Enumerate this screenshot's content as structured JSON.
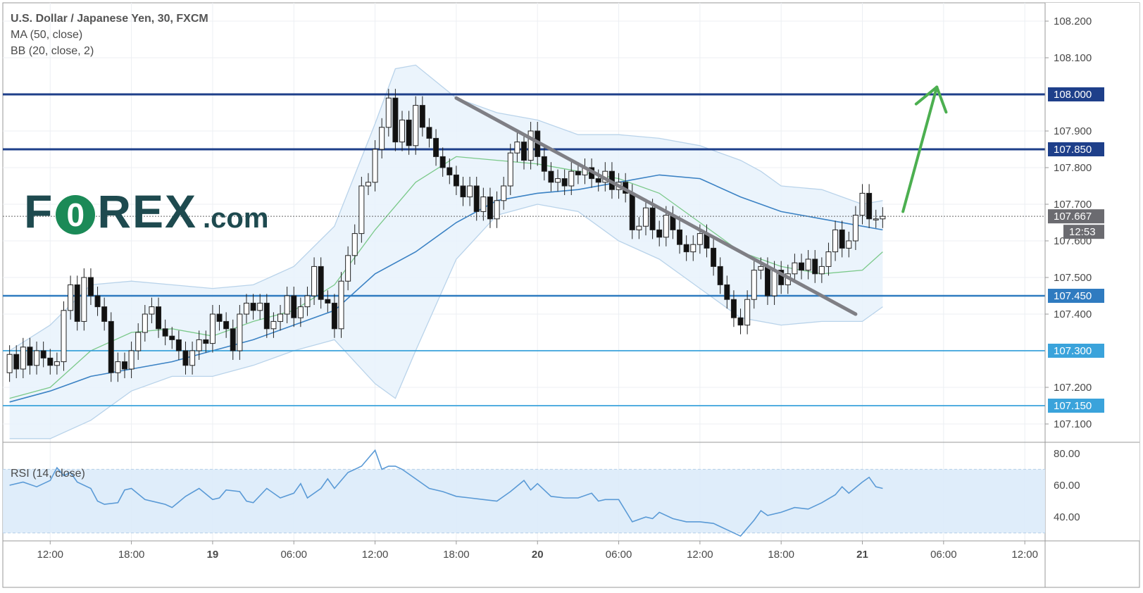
{
  "legend": {
    "title": "U.S. Dollar / Japanese Yen, 30, FXCM",
    "ma": "MA (50, close)",
    "bb": "BB (20, close, 2)",
    "rsi": "RSI (14, close)"
  },
  "logo": {
    "text_left": "F",
    "text_o": "0",
    "text_right": "REX",
    "text_domain": ".com"
  },
  "colors": {
    "level_dark": "#1e3f8a",
    "level_light": "#3aa3db",
    "candle_up": "#ffffff",
    "candle_down": "#111111",
    "ma": "#3b82c4",
    "bb_mid": "#7bc98a",
    "bb_fill": "#e8f2fb",
    "trend": "#7f7f85",
    "arrow": "#4caf50",
    "rsi_line": "#5a9ad6",
    "rsi_band": "#dcebfa"
  },
  "chart_data": {
    "type": "candlestick",
    "title": "U.S. Dollar / Japanese Yen, 30, FXCM",
    "indicators": [
      "MA (50, close)",
      "BB (20, close, 2)"
    ],
    "ylim": [
      107.05,
      108.25
    ],
    "y_ticks": [
      "108.200",
      "108.100",
      "107.900",
      "107.800",
      "107.700",
      "107.600",
      "107.500",
      "107.400",
      "107.200",
      "107.100"
    ],
    "x_ticks": [
      {
        "label": "12:00",
        "t": 3
      },
      {
        "label": "18:00",
        "t": 9
      },
      {
        "label": "19",
        "t": 15,
        "bold": true
      },
      {
        "label": "06:00",
        "t": 21
      },
      {
        "label": "12:00",
        "t": 27
      },
      {
        "label": "18:00",
        "t": 33
      },
      {
        "label": "20",
        "t": 39,
        "bold": true
      },
      {
        "label": "06:00",
        "t": 45
      },
      {
        "label": "12:00",
        "t": 51
      },
      {
        "label": "18:00",
        "t": 57
      },
      {
        "label": "21",
        "t": 63,
        "bold": true
      },
      {
        "label": "06:00",
        "t": 69
      },
      {
        "label": "12:00",
        "t": 75
      }
    ],
    "levels": [
      {
        "label": "108.000",
        "value": 108.0,
        "style": "dark"
      },
      {
        "label": "107.850",
        "value": 107.85,
        "style": "dark"
      },
      {
        "label": "107.450",
        "value": 107.45,
        "style": "mid"
      },
      {
        "label": "107.300",
        "value": 107.3,
        "style": "light"
      },
      {
        "label": "107.150",
        "value": 107.15,
        "style": "light"
      }
    ],
    "last_price": {
      "label": "107.667",
      "value": 107.667,
      "countdown": "12:53"
    },
    "candles": [
      [
        0,
        107.24,
        107.29
      ],
      [
        0.5,
        107.29,
        107.25
      ],
      [
        1,
        107.25,
        107.31
      ],
      [
        1.5,
        107.31,
        107.26
      ],
      [
        2,
        107.26,
        107.3
      ],
      [
        2.5,
        107.3,
        107.28
      ],
      [
        3,
        107.28,
        107.26
      ],
      [
        3.5,
        107.26,
        107.27
      ],
      [
        4,
        107.27,
        107.41
      ],
      [
        4.5,
        107.41,
        107.48
      ],
      [
        5,
        107.48,
        107.38
      ],
      [
        5.5,
        107.38,
        107.5
      ],
      [
        6,
        107.5,
        107.45
      ],
      [
        6.5,
        107.45,
        107.42
      ],
      [
        7,
        107.42,
        107.38
      ],
      [
        7.5,
        107.38,
        107.24
      ],
      [
        8,
        107.24,
        107.27
      ],
      [
        8.5,
        107.27,
        107.25
      ],
      [
        9,
        107.25,
        107.3
      ],
      [
        9.5,
        107.3,
        107.35
      ],
      [
        10,
        107.35,
        107.4
      ],
      [
        10.5,
        107.4,
        107.42
      ],
      [
        11,
        107.42,
        107.36
      ],
      [
        11.5,
        107.36,
        107.34
      ],
      [
        12,
        107.34,
        107.33
      ],
      [
        12.5,
        107.33,
        107.3
      ],
      [
        13,
        107.3,
        107.26
      ],
      [
        13.5,
        107.26,
        107.3
      ],
      [
        14,
        107.3,
        107.33
      ],
      [
        14.5,
        107.33,
        107.32
      ],
      [
        15,
        107.32,
        107.4
      ],
      [
        15.5,
        107.4,
        107.38
      ],
      [
        16,
        107.38,
        107.36
      ],
      [
        16.5,
        107.36,
        107.3
      ],
      [
        17,
        107.3,
        107.4
      ],
      [
        17.5,
        107.4,
        107.43
      ],
      [
        18,
        107.43,
        107.41
      ],
      [
        18.5,
        107.41,
        107.43
      ],
      [
        19,
        107.43,
        107.36
      ],
      [
        19.5,
        107.36,
        107.38
      ],
      [
        20,
        107.38,
        107.4
      ],
      [
        20.5,
        107.4,
        107.45
      ],
      [
        21,
        107.45,
        107.39
      ],
      [
        21.5,
        107.39,
        107.42
      ],
      [
        22,
        107.42,
        107.45
      ],
      [
        22.5,
        107.45,
        107.53
      ],
      [
        23,
        107.53,
        107.44
      ],
      [
        23.5,
        107.44,
        107.43
      ],
      [
        24,
        107.43,
        107.36
      ],
      [
        24.5,
        107.36,
        107.49
      ],
      [
        25,
        107.49,
        107.56
      ],
      [
        25.5,
        107.56,
        107.62
      ],
      [
        26,
        107.62,
        107.75
      ],
      [
        26.5,
        107.75,
        107.76
      ],
      [
        27,
        107.76,
        107.85
      ],
      [
        27.5,
        107.85,
        107.91
      ],
      [
        28,
        107.91,
        107.99
      ],
      [
        28.5,
        107.99,
        107.87
      ],
      [
        29,
        107.87,
        107.93
      ],
      [
        29.5,
        107.93,
        107.86
      ],
      [
        30,
        107.86,
        107.97
      ],
      [
        30.5,
        107.97,
        107.91
      ],
      [
        31,
        107.91,
        107.88
      ],
      [
        31.5,
        107.88,
        107.83
      ],
      [
        32,
        107.83,
        107.8
      ],
      [
        32.5,
        107.8,
        107.78
      ],
      [
        33,
        107.78,
        107.75
      ],
      [
        33.5,
        107.75,
        107.72
      ],
      [
        34,
        107.72,
        107.75
      ],
      [
        34.5,
        107.75,
        107.68
      ],
      [
        35,
        107.68,
        107.72
      ],
      [
        35.5,
        107.72,
        107.66
      ],
      [
        36,
        107.66,
        107.71
      ],
      [
        36.5,
        107.71,
        107.75
      ],
      [
        37,
        107.75,
        107.84
      ],
      [
        37.5,
        107.84,
        107.87
      ],
      [
        38,
        107.87,
        107.82
      ],
      [
        38.5,
        107.82,
        107.9
      ],
      [
        39,
        107.9,
        107.83
      ],
      [
        39.5,
        107.83,
        107.79
      ],
      [
        40,
        107.79,
        107.76
      ],
      [
        40.5,
        107.76,
        107.77
      ],
      [
        41,
        107.77,
        107.75
      ],
      [
        41.5,
        107.75,
        107.79
      ],
      [
        42,
        107.79,
        107.78
      ],
      [
        42.5,
        107.78,
        107.8
      ],
      [
        43,
        107.8,
        107.77
      ],
      [
        43.5,
        107.77,
        107.76
      ],
      [
        44,
        107.76,
        107.79
      ],
      [
        44.5,
        107.79,
        107.74
      ],
      [
        45,
        107.74,
        107.76
      ],
      [
        45.5,
        107.76,
        107.73
      ],
      [
        46,
        107.73,
        107.63
      ],
      [
        46.5,
        107.63,
        107.64
      ],
      [
        47,
        107.64,
        107.69
      ],
      [
        47.5,
        107.69,
        107.63
      ],
      [
        48,
        107.63,
        107.61
      ],
      [
        48.5,
        107.61,
        107.67
      ],
      [
        49,
        107.67,
        107.63
      ],
      [
        49.5,
        107.63,
        107.59
      ],
      [
        50,
        107.59,
        107.57
      ],
      [
        50.5,
        107.57,
        107.59
      ],
      [
        51,
        107.59,
        107.62
      ],
      [
        51.5,
        107.62,
        107.58
      ],
      [
        52,
        107.58,
        107.53
      ],
      [
        52.5,
        107.53,
        107.48
      ],
      [
        53,
        107.48,
        107.44
      ],
      [
        53.5,
        107.44,
        107.39
      ],
      [
        54,
        107.39,
        107.37
      ],
      [
        54.5,
        107.37,
        107.44
      ],
      [
        55,
        107.44,
        107.52
      ],
      [
        55.5,
        107.52,
        107.53
      ],
      [
        56,
        107.53,
        107.45
      ],
      [
        56.5,
        107.45,
        107.52
      ],
      [
        57,
        107.52,
        107.48
      ],
      [
        57.5,
        107.48,
        107.51
      ],
      [
        58,
        107.51,
        107.54
      ],
      [
        58.5,
        107.54,
        107.52
      ],
      [
        59,
        107.52,
        107.55
      ],
      [
        59.5,
        107.55,
        107.51
      ],
      [
        60,
        107.51,
        107.53
      ],
      [
        60.5,
        107.53,
        107.57
      ],
      [
        61,
        107.57,
        107.63
      ],
      [
        61.5,
        107.63,
        107.58
      ],
      [
        62,
        107.58,
        107.6
      ],
      [
        62.5,
        107.6,
        107.67
      ],
      [
        63,
        107.67,
        107.73
      ],
      [
        63.5,
        107.73,
        107.66
      ],
      [
        64,
        107.66,
        107.66
      ],
      [
        64.5,
        107.66,
        107.667
      ]
    ],
    "ma_points": [
      [
        0,
        107.16
      ],
      [
        3,
        107.19
      ],
      [
        6,
        107.23
      ],
      [
        9,
        107.25
      ],
      [
        12,
        107.27
      ],
      [
        15,
        107.3
      ],
      [
        18,
        107.33
      ],
      [
        21,
        107.37
      ],
      [
        24,
        107.41
      ],
      [
        27,
        107.51
      ],
      [
        30,
        107.57
      ],
      [
        33,
        107.65
      ],
      [
        36,
        107.71
      ],
      [
        39,
        107.73
      ],
      [
        42,
        107.74
      ],
      [
        45,
        107.76
      ],
      [
        48,
        107.78
      ],
      [
        51,
        107.77
      ],
      [
        54,
        107.72
      ],
      [
        57,
        107.68
      ],
      [
        60,
        107.66
      ],
      [
        63,
        107.64
      ],
      [
        64.5,
        107.63
      ]
    ],
    "bb_mid_points": [
      [
        0,
        107.17
      ],
      [
        3,
        107.2
      ],
      [
        6,
        107.3
      ],
      [
        9,
        107.35
      ],
      [
        12,
        107.36
      ],
      [
        15,
        107.34
      ],
      [
        18,
        107.38
      ],
      [
        21,
        107.41
      ],
      [
        24,
        107.48
      ],
      [
        27,
        107.63
      ],
      [
        30,
        107.76
      ],
      [
        33,
        107.83
      ],
      [
        36,
        107.82
      ],
      [
        39,
        107.81
      ],
      [
        42,
        107.79
      ],
      [
        45,
        107.77
      ],
      [
        48,
        107.73
      ],
      [
        51,
        107.65
      ],
      [
        54,
        107.57
      ],
      [
        57,
        107.53
      ],
      [
        60,
        107.51
      ],
      [
        63,
        107.52
      ],
      [
        64.5,
        107.57
      ]
    ],
    "bb_upper_points": [
      [
        0,
        107.3
      ],
      [
        3,
        107.37
      ],
      [
        6,
        107.48
      ],
      [
        9,
        107.49
      ],
      [
        12,
        107.48
      ],
      [
        15,
        107.47
      ],
      [
        18,
        107.48
      ],
      [
        21,
        107.53
      ],
      [
        24,
        107.64
      ],
      [
        27,
        107.92
      ],
      [
        28.5,
        108.07
      ],
      [
        30,
        108.08
      ],
      [
        33,
        107.99
      ],
      [
        36,
        107.95
      ],
      [
        39,
        107.93
      ],
      [
        42,
        107.89
      ],
      [
        45,
        107.89
      ],
      [
        48,
        107.88
      ],
      [
        51,
        107.86
      ],
      [
        54,
        107.82
      ],
      [
        55.5,
        107.79
      ],
      [
        57,
        107.75
      ],
      [
        60,
        107.74
      ],
      [
        63,
        107.7
      ],
      [
        64.5,
        107.71
      ]
    ],
    "bb_lower_points": [
      [
        0,
        107.06
      ],
      [
        3,
        107.06
      ],
      [
        6,
        107.11
      ],
      [
        9,
        107.19
      ],
      [
        12,
        107.23
      ],
      [
        15,
        107.23
      ],
      [
        18,
        107.26
      ],
      [
        21,
        107.3
      ],
      [
        24,
        107.33
      ],
      [
        27,
        107.21
      ],
      [
        28.5,
        107.17
      ],
      [
        30,
        107.3
      ],
      [
        33,
        107.55
      ],
      [
        36,
        107.67
      ],
      [
        39,
        107.7
      ],
      [
        42,
        107.68
      ],
      [
        45,
        107.6
      ],
      [
        48,
        107.55
      ],
      [
        51,
        107.47
      ],
      [
        54,
        107.39
      ],
      [
        57,
        107.37
      ],
      [
        60,
        107.38
      ],
      [
        63,
        107.38
      ],
      [
        64.5,
        107.42
      ]
    ],
    "trendline": {
      "from": [
        33,
        107.99
      ],
      "to": [
        62.5,
        107.4
      ]
    },
    "arrow": {
      "from": [
        66,
        107.68
      ],
      "to": [
        68.5,
        108.02
      ]
    },
    "rsi": {
      "label": "RSI (14, close)",
      "ylim": [
        25,
        87
      ],
      "band": [
        30,
        70
      ],
      "y_ticks": [
        "80.00",
        "60.00",
        "40.00"
      ],
      "values": [
        [
          0,
          60
        ],
        [
          1,
          62
        ],
        [
          2,
          59
        ],
        [
          3,
          63
        ],
        [
          3.5,
          71
        ],
        [
          4,
          66
        ],
        [
          4.5,
          68
        ],
        [
          5,
          62
        ],
        [
          6,
          58
        ],
        [
          6.5,
          50
        ],
        [
          7,
          48
        ],
        [
          8,
          49
        ],
        [
          8.5,
          57
        ],
        [
          9,
          58
        ],
        [
          10,
          51
        ],
        [
          11,
          49
        ],
        [
          11.5,
          48
        ],
        [
          12,
          46
        ],
        [
          13,
          53
        ],
        [
          14,
          58
        ],
        [
          15,
          51
        ],
        [
          15.5,
          52
        ],
        [
          16,
          57
        ],
        [
          17,
          56
        ],
        [
          17.5,
          50
        ],
        [
          18,
          49
        ],
        [
          19,
          58
        ],
        [
          20,
          52
        ],
        [
          21,
          55
        ],
        [
          21.5,
          61
        ],
        [
          22,
          52
        ],
        [
          23,
          58
        ],
        [
          23.5,
          64
        ],
        [
          24,
          58
        ],
        [
          25,
          68
        ],
        [
          26,
          72
        ],
        [
          27,
          82
        ],
        [
          27.5,
          70
        ],
        [
          28,
          72
        ],
        [
          28.5,
          72
        ],
        [
          29,
          70
        ],
        [
          30,
          64
        ],
        [
          31,
          58
        ],
        [
          32,
          56
        ],
        [
          33,
          53
        ],
        [
          34,
          52
        ],
        [
          35,
          51
        ],
        [
          36,
          50
        ],
        [
          37,
          56
        ],
        [
          38,
          63
        ],
        [
          38.5,
          57
        ],
        [
          39,
          61
        ],
        [
          40,
          53
        ],
        [
          41,
          52
        ],
        [
          42,
          52
        ],
        [
          43,
          55
        ],
        [
          43.5,
          50
        ],
        [
          44,
          51
        ],
        [
          45,
          51
        ],
        [
          46,
          37
        ],
        [
          47,
          40
        ],
        [
          47.5,
          39
        ],
        [
          48,
          43
        ],
        [
          49,
          39
        ],
        [
          50,
          37
        ],
        [
          51,
          37
        ],
        [
          52,
          36
        ],
        [
          53,
          32
        ],
        [
          54,
          28
        ],
        [
          55,
          38
        ],
        [
          55.5,
          44
        ],
        [
          56,
          41
        ],
        [
          57,
          43
        ],
        [
          58,
          46
        ],
        [
          59,
          45
        ],
        [
          60,
          49
        ],
        [
          61,
          54
        ],
        [
          61.5,
          59
        ],
        [
          62,
          55
        ],
        [
          63,
          62
        ],
        [
          63.5,
          65
        ],
        [
          64,
          59
        ],
        [
          64.5,
          58
        ]
      ]
    }
  }
}
